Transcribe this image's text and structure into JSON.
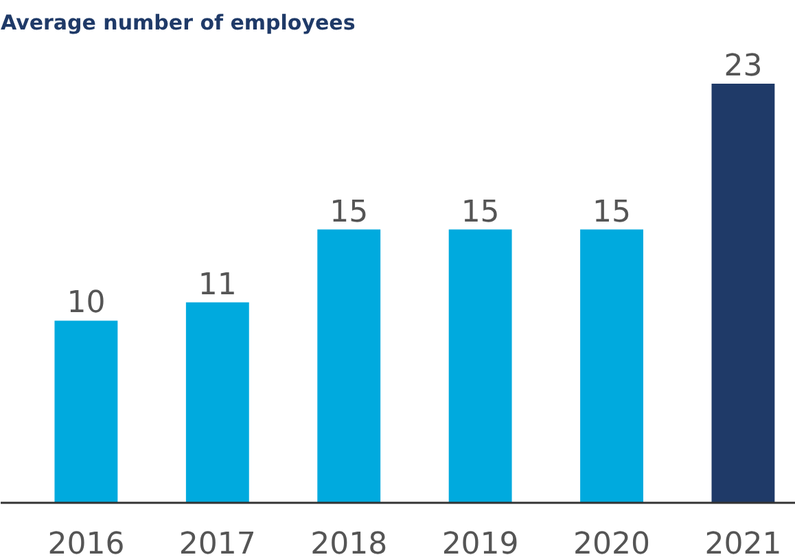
{
  "chart_data": {
    "type": "bar",
    "title": "Average number of employees",
    "categories": [
      "2016",
      "2017",
      "2018",
      "2019",
      "2020",
      "2021"
    ],
    "values": [
      10,
      11,
      15,
      15,
      15,
      23
    ],
    "colors": [
      "#00aade",
      "#00aade",
      "#00aade",
      "#00aade",
      "#00aade",
      "#1f3a68"
    ],
    "data_labels": true
  }
}
